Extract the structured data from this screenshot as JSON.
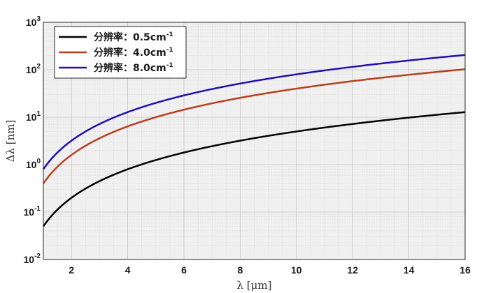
{
  "chart_data": {
    "type": "line",
    "xlabel": "λ [μm]",
    "ylabel": "Δλ [nm]",
    "xlim": [
      1,
      16
    ],
    "ylim": [
      0.01,
      1000
    ],
    "yscale": "log",
    "grid": true,
    "minor_grid": true,
    "legend_position": "top-left",
    "x_ticks": [
      2,
      4,
      6,
      8,
      10,
      12,
      14,
      16
    ],
    "y_ticks": [
      {
        "base": "10",
        "exp": "-2",
        "value": 0.01
      },
      {
        "base": "10",
        "exp": "-1",
        "value": 0.1
      },
      {
        "base": "10",
        "exp": "0",
        "value": 1
      },
      {
        "base": "10",
        "exp": "1",
        "value": 10
      },
      {
        "base": "10",
        "exp": "2",
        "value": 100
      },
      {
        "base": "10",
        "exp": "3",
        "value": 1000
      }
    ],
    "x": [
      1,
      2,
      4,
      6,
      8,
      10,
      12,
      14,
      16
    ],
    "series": [
      {
        "name": "分辨率：0.5cm",
        "name_sup": "-1",
        "color": "#000000",
        "values": [
          0.05,
          0.2,
          0.8,
          1.8,
          3.2,
          5.0,
          7.2,
          9.8,
          12.8
        ]
      },
      {
        "name": "分辨率：4.0cm",
        "name_sup": "-1",
        "color": "#b5401f",
        "values": [
          0.4,
          1.6,
          6.4,
          14.4,
          25.6,
          40.0,
          57.6,
          78.4,
          102.4
        ]
      },
      {
        "name": "分辨率：8.0cm",
        "name_sup": "-1",
        "color": "#2211aa",
        "values": [
          0.8,
          3.2,
          12.8,
          28.8,
          51.2,
          80.0,
          115.2,
          156.8,
          204.8
        ]
      }
    ]
  }
}
